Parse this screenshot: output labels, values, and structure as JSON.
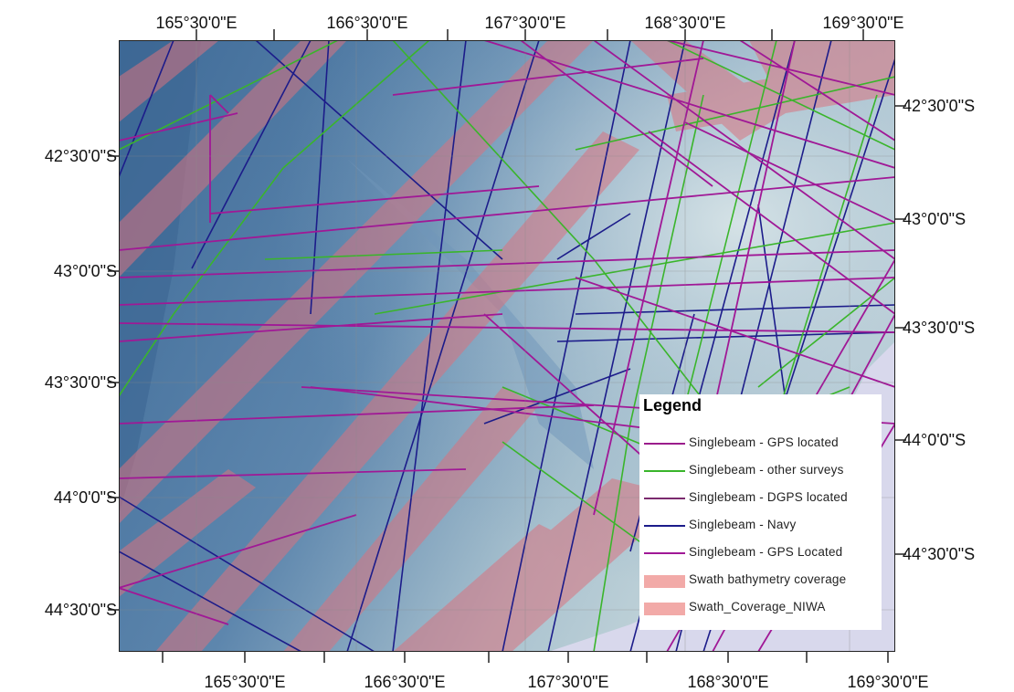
{
  "labels": {
    "top": [
      "165°30'0\"E",
      "166°30'0\"E",
      "167°30'0\"E",
      "168°30'0\"E",
      "169°30'0\"E"
    ],
    "bottom": [
      "165°30'0\"E",
      "166°30'0\"E",
      "167°30'0\"E",
      "168°30'0\"E",
      "169°30'0\"E"
    ],
    "left": [
      "42°30'0\"S",
      "43°0'0\"S",
      "43°30'0\"S",
      "44°0'0\"S",
      "44°30'0\"S"
    ],
    "right": [
      "42°30'0\"S",
      "43°0'0\"S",
      "43°30'0\"S",
      "44°0'0\"S",
      "44°30'0\"S"
    ]
  },
  "legend": {
    "title": "Legend",
    "items": [
      {
        "label": "Singlebeam - GPS located",
        "symbol": "line",
        "color": "#9b1c8c"
      },
      {
        "label": "Singlebeam - other surveys",
        "symbol": "line",
        "color": "#39b52a"
      },
      {
        "label": "Singlebeam - DGPS located",
        "symbol": "line",
        "color": "#7b2a6e"
      },
      {
        "label": "Singlebeam - Navy",
        "symbol": "line",
        "color": "#1c1c8a"
      },
      {
        "label": "Singlebeam - GPS Located",
        "symbol": "line",
        "color": "#a01896"
      },
      {
        "label": "Swath bathymetry coverage",
        "symbol": "patch",
        "color": "#f2aaa8"
      },
      {
        "label": "Swath_Coverage_NIWA",
        "symbol": "patch",
        "color": "#f2aaa8"
      }
    ]
  },
  "colors": {
    "sea": "#4f7aa3",
    "shelf": "#9fb8c8",
    "land": "#d8d8ec",
    "swath": "#d9737f",
    "gps": "#a01896",
    "other": "#3ab52b",
    "navy": "#1c1c8a"
  }
}
